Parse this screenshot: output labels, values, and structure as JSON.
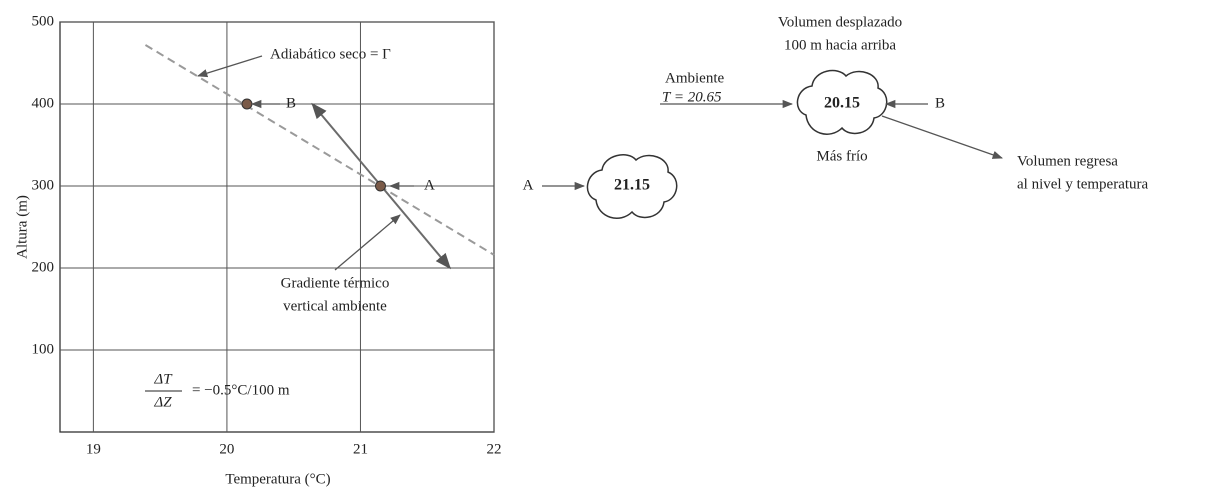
{
  "chart_data": {
    "type": "line",
    "x_label": "Temperatura (°C)",
    "y_label": "Altura (m)",
    "xlim": [
      18.75,
      22
    ],
    "ylim": [
      0,
      500
    ],
    "xticks": [
      19,
      20,
      21,
      22
    ],
    "yticks": [
      100,
      200,
      300,
      400,
      500
    ],
    "grid": true,
    "series": [
      {
        "style": "dashed",
        "color": "#9a9a9a",
        "x": [
          19.39,
          22
        ],
        "values": [
          472,
          216
        ]
      },
      {
        "style": "arrow",
        "color": "#6b6b6b",
        "x": [
          20.64,
          21.67
        ],
        "values": [
          400,
          200
        ]
      },
      {
        "style": "marker",
        "color": "#7a5a48",
        "x": [
          21.15,
          20.15
        ],
        "values": [
          300,
          400
        ]
      }
    ],
    "annotations": {
      "adiabatic": "Adiabático seco = Γ",
      "point_b": "B",
      "point_a": "A",
      "gradient_line1": "Gradiente térmico",
      "gradient_line2": "vertical ambiente"
    },
    "equation": {
      "numerator": "ΔT",
      "denominator": "ΔZ",
      "rhs": "= −0.5°C/100 m"
    }
  },
  "diagram": {
    "parcel_a": {
      "label": "A",
      "temperature": "21.15"
    },
    "parcel_b": {
      "label": "B",
      "temperature": "20.15",
      "note": "Más frío"
    },
    "environment": {
      "line1": "Ambiente",
      "line2": "T = 20.65"
    },
    "displaced": {
      "line1": "Volumen desplazado",
      "line2": "100 m hacia arriba"
    },
    "returns": {
      "line1": "Volumen regresa",
      "line2": "al nivel y temperatura"
    }
  }
}
